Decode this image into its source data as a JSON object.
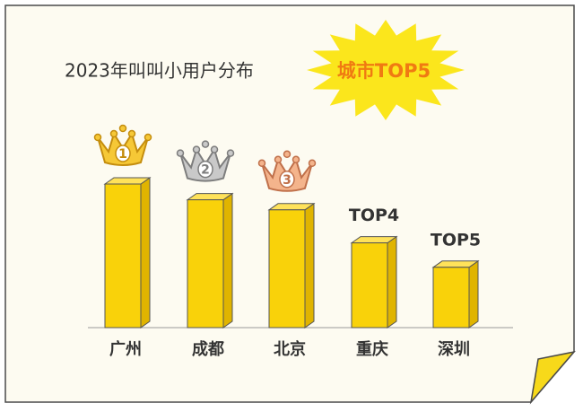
{
  "chart_data": {
    "type": "bar",
    "title": "2023年叫叫小用户分布",
    "highlight": "城市TOP5",
    "categories": [
      "广州",
      "成都",
      "北京",
      "重庆",
      "深圳"
    ],
    "values": [
      100,
      89,
      82,
      59,
      42
    ],
    "rank_labels": [
      "1",
      "2",
      "3",
      "TOP4",
      "TOP5"
    ],
    "color": "#f9d20a",
    "ylim": [
      0,
      100
    ]
  }
}
